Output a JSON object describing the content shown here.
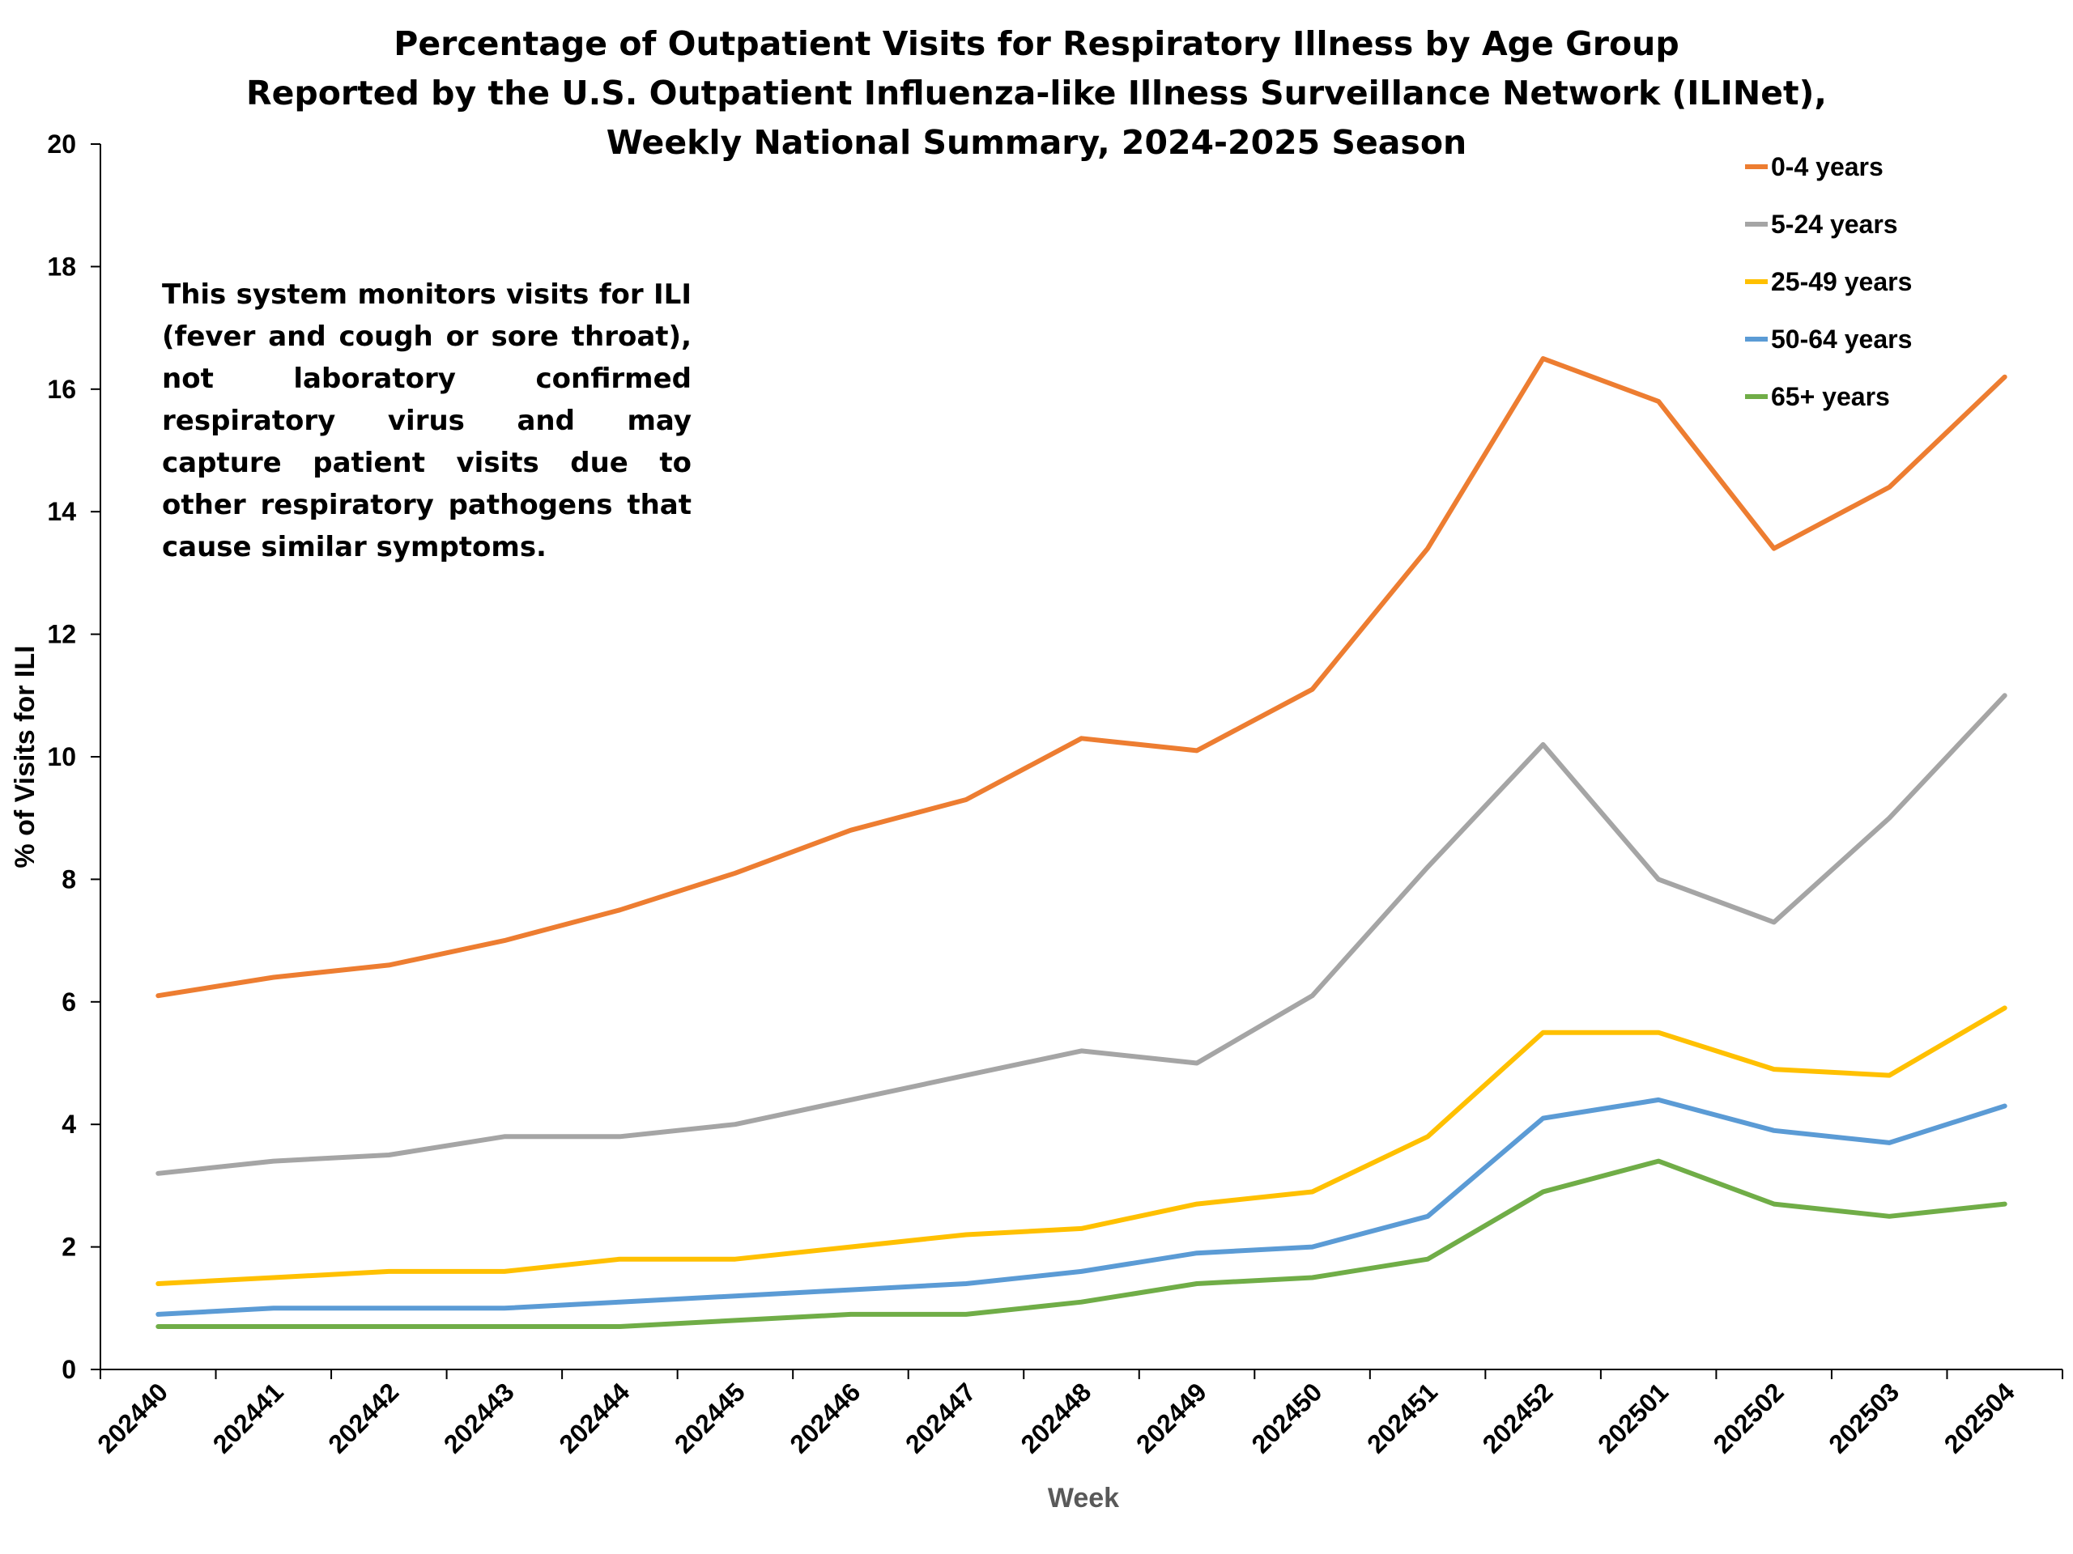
{
  "chart_data": {
    "type": "line",
    "title": [
      "Percentage of Outpatient Visits for Respiratory Illness by Age Group",
      "Reported by the U.S. Outpatient Influenza-like Illness Surveillance Network (ILINet),",
      "Weekly National Summary, 2024-2025 Season"
    ],
    "note": "This system monitors visits for ILI (fever and cough or sore throat), not laboratory confirmed respiratory virus and may capture patient visits due to other respiratory pathogens that cause similar symptoms.",
    "xlabel": "Week",
    "ylabel": "% of Visits for ILI",
    "ylim": [
      0,
      20
    ],
    "yticks": [
      "0",
      "2",
      "4",
      "6",
      "8",
      "10",
      "12",
      "14",
      "16",
      "18",
      "20"
    ],
    "categories": [
      "202440",
      "202441",
      "202442",
      "202443",
      "202444",
      "202445",
      "202446",
      "202447",
      "202448",
      "202449",
      "202450",
      "202451",
      "202452",
      "202501",
      "202502",
      "202503",
      "202504"
    ],
    "grid": false,
    "legend_position": "top-right",
    "series": [
      {
        "name": "0-4 years",
        "color": "#ED7D31",
        "values": [
          6.1,
          6.4,
          6.6,
          7.0,
          7.5,
          8.1,
          8.8,
          9.3,
          10.3,
          10.1,
          11.1,
          13.4,
          16.5,
          15.8,
          13.4,
          14.4,
          16.2
        ]
      },
      {
        "name": "5-24 years",
        "color": "#A5A5A5",
        "values": [
          3.2,
          3.4,
          3.5,
          3.8,
          3.8,
          4.0,
          4.4,
          4.8,
          5.2,
          5.0,
          6.1,
          8.2,
          10.2,
          8.0,
          7.3,
          9.0,
          11.0
        ]
      },
      {
        "name": "25-49 years",
        "color": "#FFC000",
        "values": [
          1.4,
          1.5,
          1.6,
          1.6,
          1.8,
          1.8,
          2.0,
          2.2,
          2.3,
          2.7,
          2.9,
          3.8,
          5.5,
          5.5,
          4.9,
          4.8,
          5.9
        ]
      },
      {
        "name": "50-64 years",
        "color": "#5B9BD5",
        "values": [
          0.9,
          1.0,
          1.0,
          1.0,
          1.1,
          1.2,
          1.3,
          1.4,
          1.6,
          1.9,
          2.0,
          2.5,
          4.1,
          4.4,
          3.9,
          3.7,
          4.3
        ]
      },
      {
        "name": "65+ years",
        "color": "#70AD47",
        "values": [
          0.7,
          0.7,
          0.7,
          0.7,
          0.7,
          0.8,
          0.9,
          0.9,
          1.1,
          1.4,
          1.5,
          1.8,
          2.9,
          3.4,
          2.7,
          2.5,
          2.7
        ]
      }
    ]
  }
}
